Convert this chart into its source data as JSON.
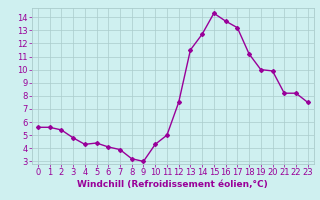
{
  "hours": [
    0,
    1,
    2,
    3,
    4,
    5,
    6,
    7,
    8,
    9,
    10,
    11,
    12,
    13,
    14,
    15,
    16,
    17,
    18,
    19,
    20,
    21,
    22,
    23
  ],
  "values": [
    5.6,
    5.6,
    5.4,
    4.8,
    4.3,
    4.4,
    4.1,
    3.9,
    3.2,
    3.0,
    4.3,
    5.0,
    7.5,
    11.5,
    12.7,
    14.3,
    13.7,
    13.2,
    11.2,
    10.0,
    9.9,
    8.2,
    8.2,
    7.5
  ],
  "line_color": "#990099",
  "marker": "D",
  "marker_size": 2.0,
  "bg_color": "#cff0f0",
  "grid_color": "#aacccc",
  "axis_color": "#990099",
  "xlabel": "Windchill (Refroidissement éolien,°C)",
  "ylim": [
    2.8,
    14.7
  ],
  "yticks": [
    3,
    4,
    5,
    6,
    7,
    8,
    9,
    10,
    11,
    12,
    13,
    14
  ],
  "xlim": [
    -0.5,
    23.5
  ],
  "xticks": [
    0,
    1,
    2,
    3,
    4,
    5,
    6,
    7,
    8,
    9,
    10,
    11,
    12,
    13,
    14,
    15,
    16,
    17,
    18,
    19,
    20,
    21,
    22,
    23
  ],
  "tick_fontsize": 6.0,
  "label_fontsize": 6.5,
  "line_width": 1.0
}
